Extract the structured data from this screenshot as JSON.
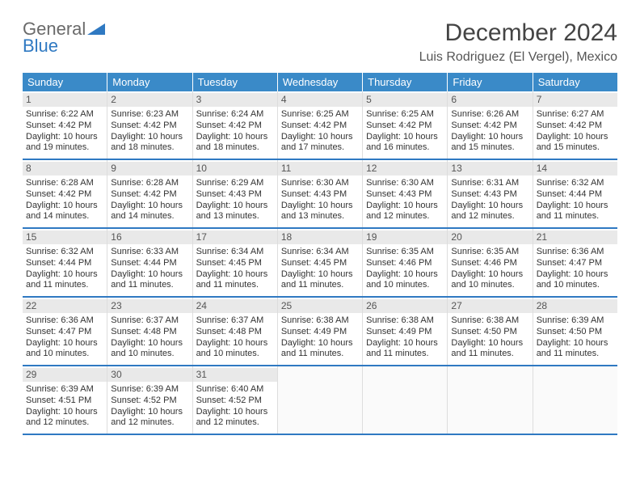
{
  "logo": {
    "line1": "General",
    "line2": "Blue"
  },
  "title": "December 2024",
  "subtitle": "Luis Rodriguez (El Vergel), Mexico",
  "accent_color": "#3a8ac8",
  "border_color": "#2f79c2",
  "daynum_bg": "#e9e9e9",
  "day_headers": [
    "Sunday",
    "Monday",
    "Tuesday",
    "Wednesday",
    "Thursday",
    "Friday",
    "Saturday"
  ],
  "weeks": [
    [
      {
        "n": "1",
        "sunrise": "Sunrise: 6:22 AM",
        "sunset": "Sunset: 4:42 PM",
        "daylight": "Daylight: 10 hours and 19 minutes."
      },
      {
        "n": "2",
        "sunrise": "Sunrise: 6:23 AM",
        "sunset": "Sunset: 4:42 PM",
        "daylight": "Daylight: 10 hours and 18 minutes."
      },
      {
        "n": "3",
        "sunrise": "Sunrise: 6:24 AM",
        "sunset": "Sunset: 4:42 PM",
        "daylight": "Daylight: 10 hours and 18 minutes."
      },
      {
        "n": "4",
        "sunrise": "Sunrise: 6:25 AM",
        "sunset": "Sunset: 4:42 PM",
        "daylight": "Daylight: 10 hours and 17 minutes."
      },
      {
        "n": "5",
        "sunrise": "Sunrise: 6:25 AM",
        "sunset": "Sunset: 4:42 PM",
        "daylight": "Daylight: 10 hours and 16 minutes."
      },
      {
        "n": "6",
        "sunrise": "Sunrise: 6:26 AM",
        "sunset": "Sunset: 4:42 PM",
        "daylight": "Daylight: 10 hours and 15 minutes."
      },
      {
        "n": "7",
        "sunrise": "Sunrise: 6:27 AM",
        "sunset": "Sunset: 4:42 PM",
        "daylight": "Daylight: 10 hours and 15 minutes."
      }
    ],
    [
      {
        "n": "8",
        "sunrise": "Sunrise: 6:28 AM",
        "sunset": "Sunset: 4:42 PM",
        "daylight": "Daylight: 10 hours and 14 minutes."
      },
      {
        "n": "9",
        "sunrise": "Sunrise: 6:28 AM",
        "sunset": "Sunset: 4:42 PM",
        "daylight": "Daylight: 10 hours and 14 minutes."
      },
      {
        "n": "10",
        "sunrise": "Sunrise: 6:29 AM",
        "sunset": "Sunset: 4:43 PM",
        "daylight": "Daylight: 10 hours and 13 minutes."
      },
      {
        "n": "11",
        "sunrise": "Sunrise: 6:30 AM",
        "sunset": "Sunset: 4:43 PM",
        "daylight": "Daylight: 10 hours and 13 minutes."
      },
      {
        "n": "12",
        "sunrise": "Sunrise: 6:30 AM",
        "sunset": "Sunset: 4:43 PM",
        "daylight": "Daylight: 10 hours and 12 minutes."
      },
      {
        "n": "13",
        "sunrise": "Sunrise: 6:31 AM",
        "sunset": "Sunset: 4:43 PM",
        "daylight": "Daylight: 10 hours and 12 minutes."
      },
      {
        "n": "14",
        "sunrise": "Sunrise: 6:32 AM",
        "sunset": "Sunset: 4:44 PM",
        "daylight": "Daylight: 10 hours and 11 minutes."
      }
    ],
    [
      {
        "n": "15",
        "sunrise": "Sunrise: 6:32 AM",
        "sunset": "Sunset: 4:44 PM",
        "daylight": "Daylight: 10 hours and 11 minutes."
      },
      {
        "n": "16",
        "sunrise": "Sunrise: 6:33 AM",
        "sunset": "Sunset: 4:44 PM",
        "daylight": "Daylight: 10 hours and 11 minutes."
      },
      {
        "n": "17",
        "sunrise": "Sunrise: 6:34 AM",
        "sunset": "Sunset: 4:45 PM",
        "daylight": "Daylight: 10 hours and 11 minutes."
      },
      {
        "n": "18",
        "sunrise": "Sunrise: 6:34 AM",
        "sunset": "Sunset: 4:45 PM",
        "daylight": "Daylight: 10 hours and 11 minutes."
      },
      {
        "n": "19",
        "sunrise": "Sunrise: 6:35 AM",
        "sunset": "Sunset: 4:46 PM",
        "daylight": "Daylight: 10 hours and 10 minutes."
      },
      {
        "n": "20",
        "sunrise": "Sunrise: 6:35 AM",
        "sunset": "Sunset: 4:46 PM",
        "daylight": "Daylight: 10 hours and 10 minutes."
      },
      {
        "n": "21",
        "sunrise": "Sunrise: 6:36 AM",
        "sunset": "Sunset: 4:47 PM",
        "daylight": "Daylight: 10 hours and 10 minutes."
      }
    ],
    [
      {
        "n": "22",
        "sunrise": "Sunrise: 6:36 AM",
        "sunset": "Sunset: 4:47 PM",
        "daylight": "Daylight: 10 hours and 10 minutes."
      },
      {
        "n": "23",
        "sunrise": "Sunrise: 6:37 AM",
        "sunset": "Sunset: 4:48 PM",
        "daylight": "Daylight: 10 hours and 10 minutes."
      },
      {
        "n": "24",
        "sunrise": "Sunrise: 6:37 AM",
        "sunset": "Sunset: 4:48 PM",
        "daylight": "Daylight: 10 hours and 10 minutes."
      },
      {
        "n": "25",
        "sunrise": "Sunrise: 6:38 AM",
        "sunset": "Sunset: 4:49 PM",
        "daylight": "Daylight: 10 hours and 11 minutes."
      },
      {
        "n": "26",
        "sunrise": "Sunrise: 6:38 AM",
        "sunset": "Sunset: 4:49 PM",
        "daylight": "Daylight: 10 hours and 11 minutes."
      },
      {
        "n": "27",
        "sunrise": "Sunrise: 6:38 AM",
        "sunset": "Sunset: 4:50 PM",
        "daylight": "Daylight: 10 hours and 11 minutes."
      },
      {
        "n": "28",
        "sunrise": "Sunrise: 6:39 AM",
        "sunset": "Sunset: 4:50 PM",
        "daylight": "Daylight: 10 hours and 11 minutes."
      }
    ],
    [
      {
        "n": "29",
        "sunrise": "Sunrise: 6:39 AM",
        "sunset": "Sunset: 4:51 PM",
        "daylight": "Daylight: 10 hours and 12 minutes."
      },
      {
        "n": "30",
        "sunrise": "Sunrise: 6:39 AM",
        "sunset": "Sunset: 4:52 PM",
        "daylight": "Daylight: 10 hours and 12 minutes."
      },
      {
        "n": "31",
        "sunrise": "Sunrise: 6:40 AM",
        "sunset": "Sunset: 4:52 PM",
        "daylight": "Daylight: 10 hours and 12 minutes."
      },
      {
        "empty": true
      },
      {
        "empty": true
      },
      {
        "empty": true
      },
      {
        "empty": true
      }
    ]
  ]
}
